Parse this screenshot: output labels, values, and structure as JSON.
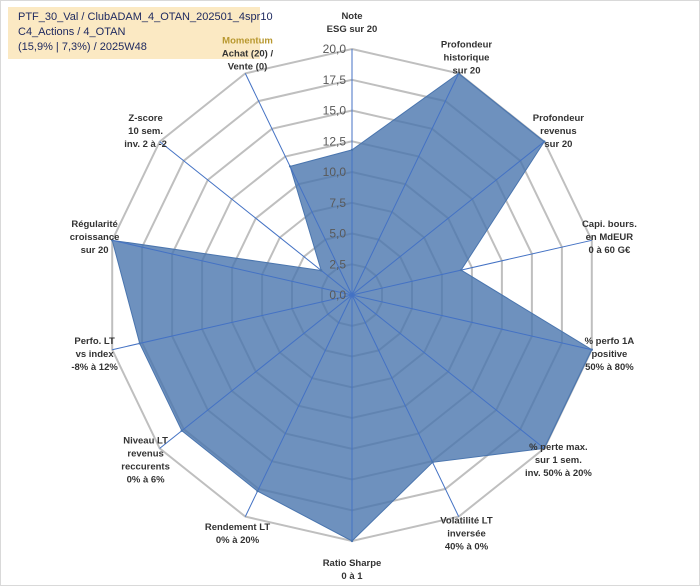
{
  "title": {
    "line1": "PTF_30_Val / ClubADAM_4_OTAN_202501_4spr10",
    "line2": "C4_Actions / 4_OTAN",
    "line3": "(15,9% | 7,3%) / 2025W48"
  },
  "colors": {
    "fill": "#4a75ae",
    "axis": "#4472c4",
    "grid": "#bfbfbf",
    "title_bg": "#fbe9c3",
    "momentum_label": "#b8982f"
  },
  "chart_data": {
    "type": "radar",
    "r_range": [
      0,
      20
    ],
    "r_ticks": [
      "0,0",
      "2,5",
      "5,0",
      "7,5",
      "10,0",
      "12,5",
      "15,0",
      "17,5",
      "20,0"
    ],
    "categories": [
      {
        "lines": [
          "Note",
          "ESG sur 20"
        ]
      },
      {
        "lines": [
          "Profondeur",
          "historique",
          "sur 20"
        ]
      },
      {
        "lines": [
          "Profondeur",
          "revenus",
          "sur 20"
        ]
      },
      {
        "lines": [
          "Capi. bours.",
          "en MdEUR",
          "0 à 60 G€"
        ]
      },
      {
        "lines": [
          "% perfo 1A",
          "positive",
          "50% à 80%"
        ]
      },
      {
        "lines": [
          "% perte max.",
          "sur 1 sem.",
          "inv. 50% à 20%"
        ]
      },
      {
        "lines": [
          "Volatilité LT",
          "inversée",
          "40% à 0%"
        ]
      },
      {
        "lines": [
          "Ratio Sharpe",
          "0 à 1"
        ]
      },
      {
        "lines": [
          "Rendement LT",
          "0% à 20%"
        ]
      },
      {
        "lines": [
          "Niveau LT",
          "revenus",
          "reccurents",
          "0% à 6%"
        ]
      },
      {
        "lines": [
          "Perfo. LT",
          "vs index",
          "-8% à 12%"
        ]
      },
      {
        "lines": [
          "Régularité",
          "croissance",
          "sur 20"
        ]
      },
      {
        "lines": [
          "Z-score",
          "10 sem.",
          "inv. 2 à -2"
        ]
      },
      {
        "lines": [
          "Momentum",
          "Achat (20) /",
          "Vente (0)"
        ]
      }
    ],
    "series": [
      {
        "name": "PTF_30_Val",
        "values": [
          11.8,
          20,
          20,
          9.1,
          20,
          20,
          15.1,
          20,
          17.7,
          17.7,
          17.7,
          20,
          3.2,
          11.6
        ]
      }
    ]
  }
}
